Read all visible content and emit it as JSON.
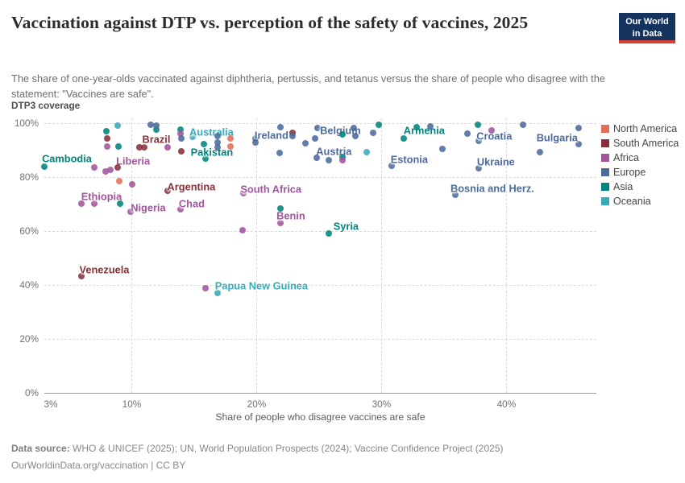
{
  "header": {
    "title": "Vaccination against DTP vs. perception of the safety of vaccines, 2025",
    "subtitle": "The share of one-year-olds vaccinated against diphtheria, pertussis, and tetanus versus the share of people who disagree with the statement: \"Vaccines are safe\".",
    "logo_line1": "Our World",
    "logo_line2": "in Data"
  },
  "chart_data": {
    "type": "scatter",
    "title": "Vaccination against DTP vs. perception of the safety of vaccines, 2025",
    "xlabel": "Share of people who disagree vaccines are safe",
    "ylabel": "DTP3 coverage",
    "x_ticks": [
      3,
      10,
      20,
      30,
      40
    ],
    "y_ticks": [
      0,
      20,
      40,
      60,
      80,
      100
    ],
    "tick_suffix": "%",
    "xlim": [
      3,
      47.2
    ],
    "ylim": [
      0,
      100
    ],
    "grid": "dashed",
    "legend_position": "right",
    "continents": {
      "north_america": {
        "name": "North America",
        "color": "#e56e5a"
      },
      "south_america": {
        "name": "South America",
        "color": "#883039"
      },
      "africa": {
        "name": "Africa",
        "color": "#a2559c"
      },
      "europe": {
        "name": "Europe",
        "color": "#4c6a9c"
      },
      "asia": {
        "name": "Asia",
        "color": "#00847e"
      },
      "oceania": {
        "name": "Oceania",
        "color": "#38aaba"
      }
    },
    "points": [
      {
        "label": "Cambodia",
        "x": 3.0,
        "y": 84.0,
        "c": "asia",
        "lx": 28,
        "ly": -10
      },
      {
        "label": "Ethiopia",
        "x": 7.0,
        "y": 70.2,
        "c": "africa",
        "lx": 9,
        "ly": -9
      },
      {
        "label": "Liberia",
        "x": 8.3,
        "y": 82.7,
        "c": "africa",
        "lx": 28,
        "ly": -11
      },
      {
        "label": "Nigeria",
        "x": 9.9,
        "y": 67.3,
        "c": "africa",
        "lx": 22,
        "ly": -5
      },
      {
        "label": "Brazil",
        "x": 11.0,
        "y": 91.1,
        "c": "south_america",
        "lx": 15,
        "ly": -10
      },
      {
        "label": "Venezuela",
        "x": 6.0,
        "y": 43.3,
        "c": "south_america",
        "lx": 28,
        "ly": -8
      },
      {
        "label": "Argentina",
        "x": 12.9,
        "y": 75.0,
        "c": "south_america",
        "lx": 29,
        "ly": -5
      },
      {
        "label": "Chad",
        "x": 13.9,
        "y": 68.1,
        "c": "africa",
        "lx": 14,
        "ly": -7
      },
      {
        "label": "Pakistan",
        "x": 15.9,
        "y": 86.8,
        "c": "asia",
        "lx": 8,
        "ly": -8
      },
      {
        "label": "Australia",
        "x": 14.9,
        "y": 94.9,
        "c": "oceania",
        "lx": 23,
        "ly": -6
      },
      {
        "label": "South Africa",
        "x": 18.95,
        "y": 74.0,
        "c": "africa",
        "lx": 34,
        "ly": -5
      },
      {
        "label": "Benin",
        "x": 21.9,
        "y": 63.1,
        "c": "africa",
        "lx": 13,
        "ly": -9
      },
      {
        "label": "Ireland",
        "x": 19.9,
        "y": 94.4,
        "c": "europe",
        "lx": 20,
        "ly": -4
      },
      {
        "label": "Belgium",
        "x": 24.9,
        "y": 98.3,
        "c": "europe",
        "lx": 28,
        "ly": 3
      },
      {
        "label": "Austria",
        "x": 25.8,
        "y": 86.2,
        "c": "europe",
        "lx": 6,
        "ly": -11
      },
      {
        "label": "Armenia",
        "x": 31.8,
        "y": 94.2,
        "c": "asia",
        "lx": 25,
        "ly": -10
      },
      {
        "label": "Estonia",
        "x": 30.8,
        "y": 84.2,
        "c": "europe",
        "lx": 22,
        "ly": -8
      },
      {
        "label": "Croatia",
        "x": 37.8,
        "y": 93.4,
        "c": "europe",
        "lx": 19,
        "ly": -6
      },
      {
        "label": "Ukraine",
        "x": 37.8,
        "y": 83.3,
        "c": "europe",
        "lx": 21,
        "ly": -8
      },
      {
        "label": "Bulgaria",
        "x": 45.8,
        "y": 92.1,
        "c": "europe",
        "lx": -27,
        "ly": -8
      },
      {
        "label": "Bosnia and Herz.",
        "x": 35.9,
        "y": 73.3,
        "c": "europe",
        "lx": 46,
        "ly": -8
      },
      {
        "label": "Syria",
        "x": 25.8,
        "y": 59.1,
        "c": "asia",
        "lx": 21,
        "ly": -9
      },
      {
        "label": "Papua New Guinea",
        "x": 16.9,
        "y": 37.0,
        "c": "oceania",
        "lx": 54,
        "ly": -9
      },
      {
        "x": 8.0,
        "y": 97.1,
        "c": "asia"
      },
      {
        "x": 8.95,
        "y": 91.2,
        "c": "asia"
      },
      {
        "x": 12.0,
        "y": 97.5,
        "c": "asia"
      },
      {
        "x": 13.9,
        "y": 97.7,
        "c": "asia"
      },
      {
        "x": 15.8,
        "y": 92.1,
        "c": "asia"
      },
      {
        "x": 26.9,
        "y": 95.7,
        "c": "asia"
      },
      {
        "x": 26.85,
        "y": 87.5,
        "c": "asia"
      },
      {
        "x": 29.8,
        "y": 99.4,
        "c": "asia"
      },
      {
        "x": 32.8,
        "y": 98.6,
        "c": "asia"
      },
      {
        "x": 37.7,
        "y": 99.4,
        "c": "asia"
      },
      {
        "x": 9.05,
        "y": 70.2,
        "c": "asia"
      },
      {
        "x": 21.9,
        "y": 68.3,
        "c": "asia"
      },
      {
        "x": 8.9,
        "y": 99.2,
        "c": "oceania"
      },
      {
        "x": 28.8,
        "y": 89.3,
        "c": "oceania"
      },
      {
        "x": 8.05,
        "y": 94.4,
        "c": "south_america"
      },
      {
        "x": 10.6,
        "y": 91.1,
        "c": "south_america"
      },
      {
        "x": 13.96,
        "y": 89.6,
        "c": "south_america"
      },
      {
        "x": 22.9,
        "y": 96.4,
        "c": "south_america"
      },
      {
        "x": 8.9,
        "y": 83.7,
        "c": "south_america"
      },
      {
        "x": 8.05,
        "y": 91.2,
        "c": "africa"
      },
      {
        "x": 12.9,
        "y": 91.1,
        "c": "africa"
      },
      {
        "x": 13.9,
        "y": 96.1,
        "c": "africa"
      },
      {
        "x": 7.0,
        "y": 83.5,
        "c": "africa"
      },
      {
        "x": 7.9,
        "y": 82.0,
        "c": "africa"
      },
      {
        "x": 10.05,
        "y": 77.4,
        "c": "africa"
      },
      {
        "x": 6.0,
        "y": 70.2,
        "c": "africa"
      },
      {
        "x": 26.9,
        "y": 86.4,
        "c": "africa"
      },
      {
        "x": 38.8,
        "y": 97.4,
        "c": "africa"
      },
      {
        "x": 15.9,
        "y": 38.8,
        "c": "africa"
      },
      {
        "x": 18.9,
        "y": 60.4,
        "c": "africa"
      },
      {
        "x": 11.5,
        "y": 99.4,
        "c": "europe"
      },
      {
        "x": 12.0,
        "y": 99.0,
        "c": "europe"
      },
      {
        "x": 13.96,
        "y": 94.4,
        "c": "europe"
      },
      {
        "x": 16.86,
        "y": 95.1,
        "c": "europe"
      },
      {
        "x": 16.86,
        "y": 92.7,
        "c": "europe"
      },
      {
        "x": 16.86,
        "y": 90.9,
        "c": "europe"
      },
      {
        "x": 19.9,
        "y": 92.7,
        "c": "europe"
      },
      {
        "x": 21.85,
        "y": 89.0,
        "c": "europe"
      },
      {
        "x": 21.9,
        "y": 98.4,
        "c": "europe"
      },
      {
        "x": 22.9,
        "y": 95.1,
        "c": "europe"
      },
      {
        "x": 23.9,
        "y": 92.4,
        "c": "europe"
      },
      {
        "x": 24.7,
        "y": 94.2,
        "c": "europe"
      },
      {
        "x": 27.8,
        "y": 98.3,
        "c": "europe"
      },
      {
        "x": 24.8,
        "y": 87.2,
        "c": "europe"
      },
      {
        "x": 27.9,
        "y": 95.2,
        "c": "europe"
      },
      {
        "x": 29.3,
        "y": 96.4,
        "c": "europe"
      },
      {
        "x": 33.9,
        "y": 98.9,
        "c": "europe"
      },
      {
        "x": 34.9,
        "y": 90.4,
        "c": "europe"
      },
      {
        "x": 36.9,
        "y": 96.2,
        "c": "europe"
      },
      {
        "x": 41.3,
        "y": 99.4,
        "c": "europe"
      },
      {
        "x": 42.7,
        "y": 89.2,
        "c": "europe"
      },
      {
        "x": 45.8,
        "y": 98.1,
        "c": "europe"
      },
      {
        "x": 17.9,
        "y": 94.3,
        "c": "north_america"
      },
      {
        "x": 17.9,
        "y": 91.3,
        "c": "north_america"
      },
      {
        "x": 9.0,
        "y": 78.5,
        "c": "north_america"
      }
    ]
  },
  "footer": {
    "source_label": "Data source:",
    "source_text": " WHO & UNICEF (2025); UN, World Population Prospects (2024); Vaccine Confidence Project (2025)",
    "license": "OurWorldinData.org/vaccination | CC BY"
  }
}
